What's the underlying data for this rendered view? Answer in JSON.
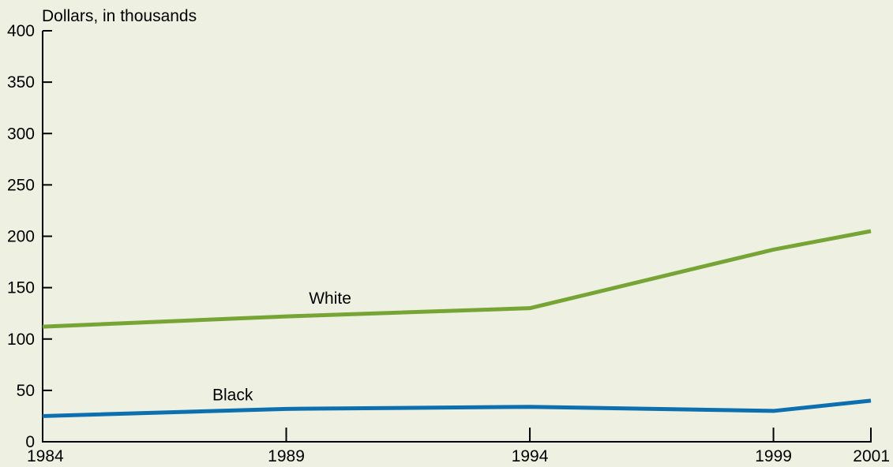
{
  "chart_data": {
    "type": "line",
    "ylabel": "Dollars, in thousands",
    "x": [
      "1984",
      "1989",
      "1994",
      "1999",
      "2001"
    ],
    "x_values": [
      1984,
      1989,
      1994,
      1999,
      2001
    ],
    "xlim": [
      1984,
      2001
    ],
    "ylim": [
      0,
      400
    ],
    "yticks": [
      0,
      50,
      100,
      150,
      200,
      250,
      300,
      350,
      400
    ],
    "grid": false,
    "series": [
      {
        "name": "White",
        "color": "#77a535",
        "values": [
          112,
          122,
          130,
          187,
          205
        ]
      },
      {
        "name": "Black",
        "color": "#0c6fb0",
        "values": [
          25,
          32,
          34,
          30,
          40
        ]
      }
    ]
  }
}
